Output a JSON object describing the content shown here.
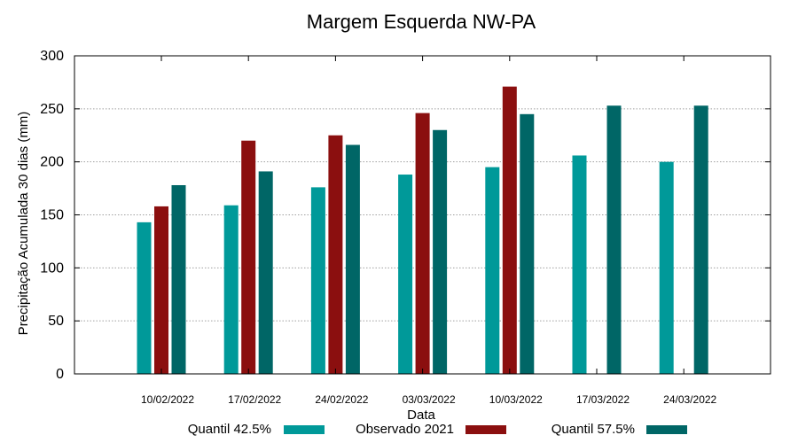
{
  "chart_data": {
    "type": "bar",
    "title": "Margem Esquerda NW-PA",
    "xlabel": "Data",
    "ylabel": "Precipitação Acumulada 30 dias (mm)",
    "ylim": [
      0,
      300
    ],
    "yticks": [
      0,
      50,
      100,
      150,
      200,
      250,
      300
    ],
    "grid": true,
    "legend_position": "bottom",
    "categories": [
      "10/02/2022",
      "17/02/2022",
      "24/02/2022",
      "03/03/2022",
      "10/03/2022",
      "17/03/2022",
      "24/03/2022"
    ],
    "series": [
      {
        "name": "Quantil 42.5%",
        "color": "#009999",
        "values": [
          143,
          159,
          176,
          188,
          195,
          206,
          200
        ]
      },
      {
        "name": "Observado 2021",
        "color": "#8b0f0f",
        "values": [
          158,
          220,
          225,
          246,
          271,
          null,
          null
        ]
      },
      {
        "name": "Quantil 57.5%",
        "color": "#006666",
        "values": [
          178,
          191,
          216,
          230,
          245,
          253,
          253
        ]
      }
    ]
  }
}
